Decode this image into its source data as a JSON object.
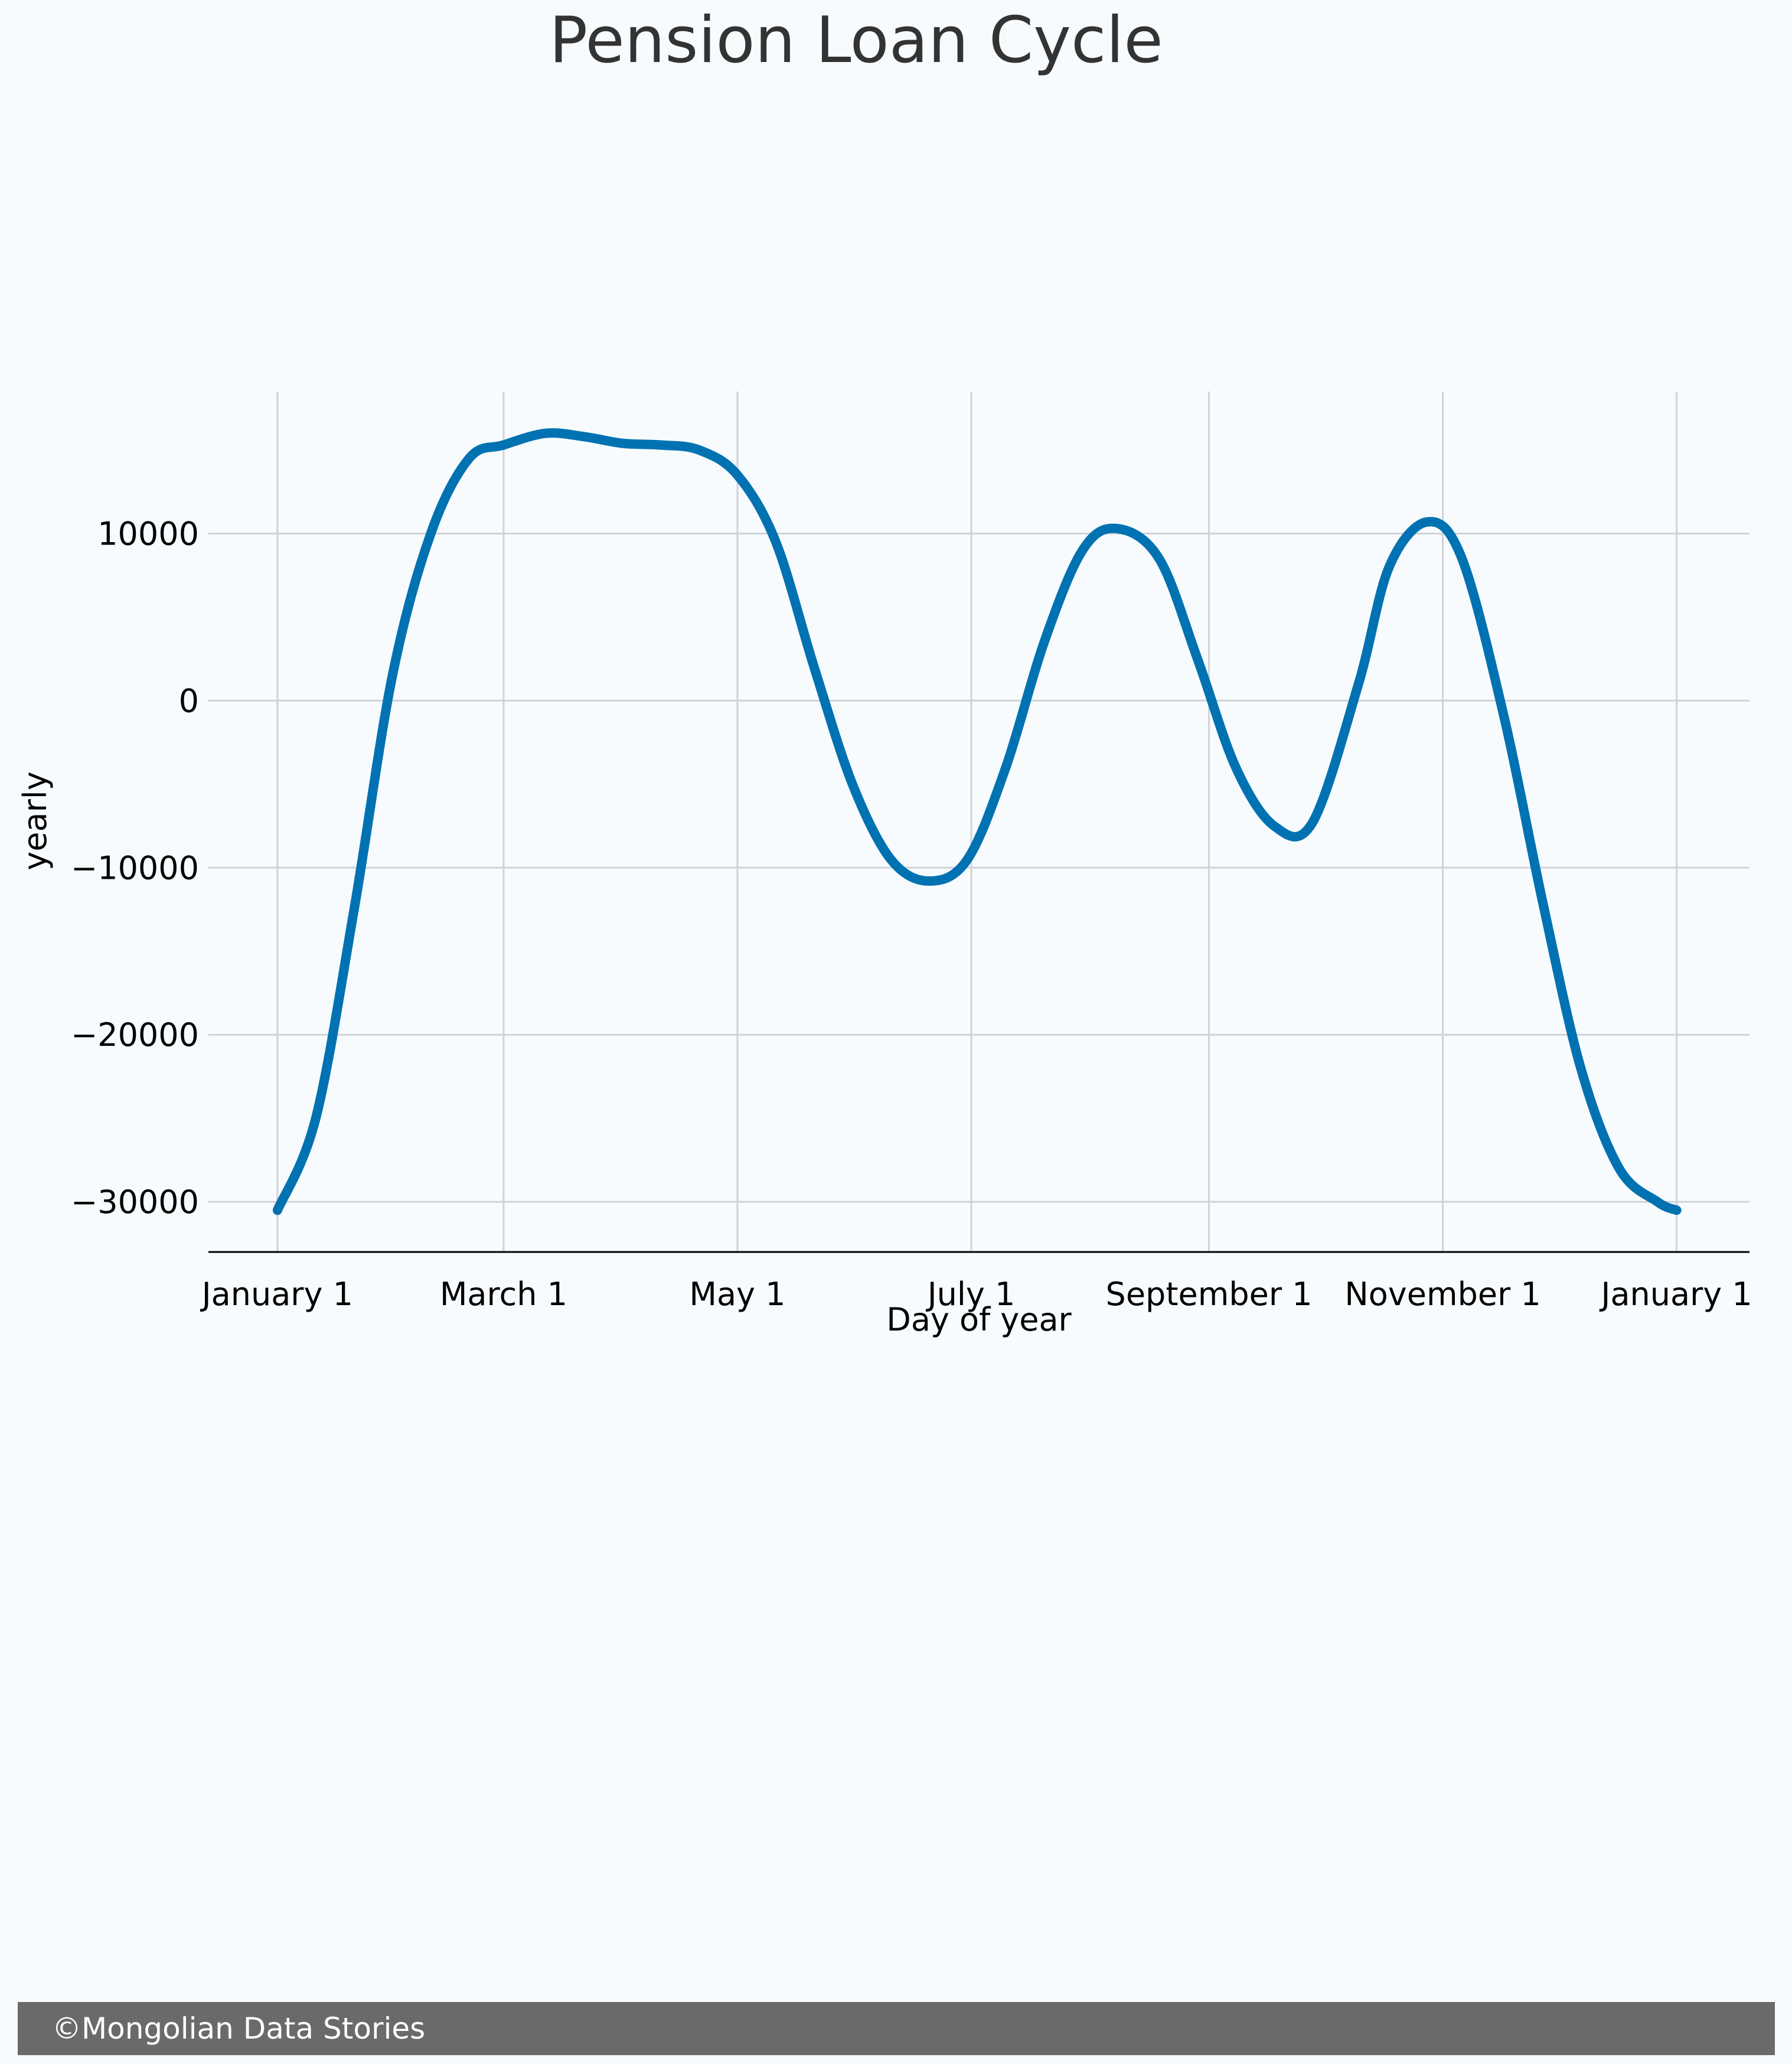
{
  "chart_data": {
    "type": "line",
    "title": "Pension Loan Cycle",
    "xlabel": "Day of year",
    "ylabel": "yearly",
    "x_tick_labels": [
      "January 1",
      "March 1",
      "May 1",
      "July 1",
      "September 1",
      "November 1",
      "January 1"
    ],
    "x_tick_days": [
      0,
      59,
      120,
      181,
      243,
      304,
      365
    ],
    "y_ticks": [
      10000,
      0,
      -10000,
      -20000,
      -30000
    ],
    "y_tick_labels": [
      "10000",
      "0",
      "−10000",
      "−20000",
      "−30000"
    ],
    "ylim": [
      -33000,
      18500
    ],
    "xlim": [
      -18,
      384
    ],
    "grid": true,
    "line_color": "#0072b2",
    "series": [
      {
        "name": "",
        "x": [
          0,
          10,
          20,
          30,
          40,
          50,
          59,
          70,
          80,
          90,
          100,
          110,
          120,
          130,
          140,
          150,
          160,
          170,
          180,
          190,
          200,
          210,
          219,
          230,
          240,
          250,
          260,
          270,
          282,
          290,
          300,
          309,
          320,
          330,
          340,
          350,
          360,
          365
        ],
        "y": [
          -30500,
          -25000,
          -12500,
          1500,
          10000,
          14500,
          15300,
          16000,
          15800,
          15400,
          15300,
          15000,
          13500,
          9500,
          2000,
          -5000,
          -9500,
          -10800,
          -9500,
          -4000,
          3500,
          9000,
          10300,
          8500,
          2500,
          -4000,
          -7500,
          -7300,
          1000,
          8000,
          10700,
          8500,
          -1000,
          -12000,
          -22000,
          -28000,
          -30000,
          -30500
        ]
      }
    ]
  },
  "footer": {
    "text": "©Mongolian Data Stories"
  }
}
